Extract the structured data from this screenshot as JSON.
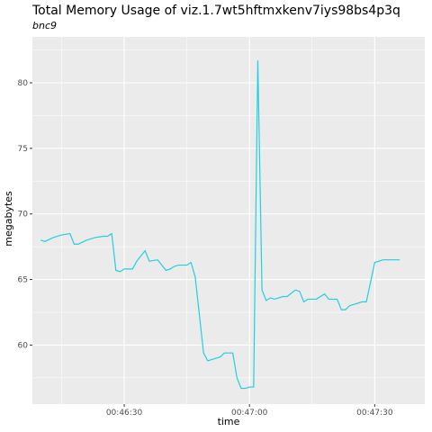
{
  "chart_data": {
    "type": "line",
    "title": "Total Memory Usage of viz.1.7wt5hftmxkenv7iys98bs4p3q",
    "subtitle": "bnc9",
    "xlabel": "time",
    "ylabel": "megabytes",
    "x_unit": "seconds",
    "xlim": [
      "00:46:08",
      "00:47:42"
    ],
    "ylim": [
      55.5,
      83.5
    ],
    "x_ticks": [
      {
        "label": "00:46:30",
        "value": "00:46:30"
      },
      {
        "label": "00:47:00",
        "value": "00:47:00"
      },
      {
        "label": "00:47:30",
        "value": "00:47:30"
      }
    ],
    "y_ticks": [
      60,
      65,
      70,
      75,
      80
    ],
    "grid": true,
    "panel_background": "#ebebeb",
    "grid_color": "#ffffff",
    "line_color": "#22cfe0",
    "series": [
      {
        "x": [
          "00:46:10",
          "00:46:11",
          "00:46:13",
          "00:46:15",
          "00:46:17",
          "00:46:18",
          "00:46:19",
          "00:46:21",
          "00:46:23",
          "00:46:25",
          "00:46:26",
          "00:46:27",
          "00:46:28",
          "00:46:29",
          "00:46:30",
          "00:46:32",
          "00:46:33",
          "00:46:35",
          "00:46:36",
          "00:46:38",
          "00:46:40",
          "00:46:41",
          "00:46:42",
          "00:46:43",
          "00:46:45",
          "00:46:46",
          "00:46:47",
          "00:46:49",
          "00:46:50",
          "00:46:51",
          "00:46:53",
          "00:46:54",
          "00:46:56",
          "00:46:57",
          "00:46:58",
          "00:46:59",
          "00:47:00",
          "00:47:01",
          "00:47:02",
          "00:47:03",
          "00:47:04",
          "00:47:05",
          "00:47:06",
          "00:47:08",
          "00:47:09",
          "00:47:11",
          "00:47:12",
          "00:47:13",
          "00:47:14",
          "00:47:16",
          "00:47:18",
          "00:47:19",
          "00:47:21",
          "00:47:22",
          "00:47:23",
          "00:47:24",
          "00:47:26",
          "00:47:27",
          "00:47:28",
          "00:47:30",
          "00:47:32",
          "00:47:33",
          "00:47:34",
          "00:47:36"
        ],
        "y": [
          68.0,
          67.9,
          68.2,
          68.4,
          68.5,
          67.7,
          67.7,
          68.0,
          68.2,
          68.3,
          68.3,
          68.5,
          65.7,
          65.6,
          65.8,
          65.8,
          66.4,
          67.2,
          66.4,
          66.5,
          65.7,
          65.8,
          66.0,
          66.1,
          66.1,
          66.3,
          65.2,
          59.4,
          58.8,
          58.9,
          59.1,
          59.4,
          59.4,
          57.5,
          56.7,
          56.7,
          56.8,
          56.8,
          81.7,
          64.2,
          63.4,
          63.6,
          63.5,
          63.7,
          63.7,
          64.2,
          64.1,
          63.3,
          63.5,
          63.5,
          63.9,
          63.5,
          63.5,
          62.7,
          62.7,
          63.0,
          63.2,
          63.3,
          63.3,
          66.3,
          66.5,
          66.5,
          66.5,
          66.5
        ]
      }
    ]
  }
}
